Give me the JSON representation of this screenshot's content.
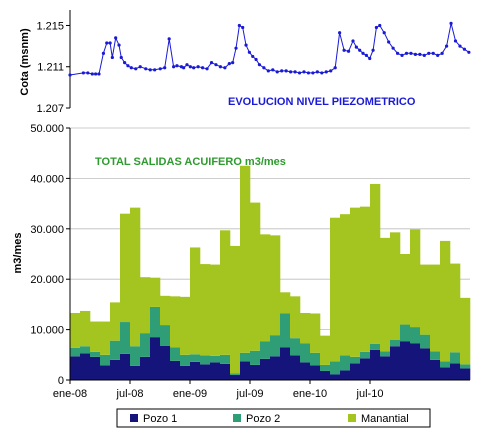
{
  "chart_data": [
    {
      "type": "line",
      "ylabel": "Cota (msnm)",
      "annotation": "EVOLUCION NIVEL PIEZOMETRICO",
      "ytick_labels": [
        "1.215",
        "1.211",
        "1.207"
      ],
      "yticks": [
        1215,
        1211,
        1207
      ],
      "ylim": [
        1207,
        1216.5
      ],
      "xlim": [
        0,
        35.9
      ],
      "color": "#1a1ad6",
      "x": [
        0,
        1.2,
        1.6,
        2.0,
        2.3,
        2.6,
        3.0,
        3.3,
        3.6,
        3.8,
        4.1,
        4.4,
        4.6,
        4.9,
        5.2,
        5.5,
        5.9,
        6.3,
        6.8,
        7.2,
        7.6,
        8.1,
        8.5,
        8.9,
        9.3,
        9.6,
        10.0,
        10.2,
        10.5,
        10.8,
        11.1,
        11.5,
        11.9,
        12.3,
        12.7,
        13.1,
        13.5,
        13.9,
        14.3,
        14.6,
        14.9,
        15.2,
        15.5,
        15.8,
        16.1,
        16.4,
        16.7,
        17.0,
        17.4,
        17.8,
        18.2,
        18.6,
        19.0,
        19.4,
        19.8,
        20.2,
        20.6,
        21.0,
        21.4,
        21.8,
        22.2,
        22.6,
        23.0,
        23.4,
        23.8,
        24.2,
        24.6,
        25.0,
        25.4,
        25.7,
        26.0,
        26.3,
        26.6,
        26.9,
        27.2,
        27.5,
        27.8,
        28.2,
        28.6,
        29.0,
        29.4,
        29.8,
        30.2,
        30.6,
        31.0,
        31.4,
        31.8,
        32.2,
        32.6,
        33.0,
        33.4,
        33.8,
        34.2,
        34.6,
        35.0,
        35.4,
        35.8
      ],
      "y": [
        1210.2,
        1210.4,
        1210.4,
        1210.3,
        1210.3,
        1210.3,
        1212.3,
        1213.3,
        1213.3,
        1211.9,
        1213.8,
        1213.1,
        1211.9,
        1211.4,
        1211.1,
        1210.9,
        1210.8,
        1211.0,
        1210.8,
        1210.7,
        1210.7,
        1210.8,
        1210.9,
        1213.7,
        1211.0,
        1211.1,
        1211.0,
        1210.9,
        1211.2,
        1211.0,
        1210.9,
        1211.0,
        1210.9,
        1210.8,
        1211.4,
        1211.2,
        1211.0,
        1210.9,
        1211.3,
        1211.4,
        1212.8,
        1215.0,
        1214.8,
        1213.1,
        1212.4,
        1212.0,
        1211.7,
        1211.2,
        1210.9,
        1210.6,
        1210.7,
        1210.5,
        1210.6,
        1210.6,
        1210.5,
        1210.5,
        1210.4,
        1210.5,
        1210.4,
        1210.4,
        1210.5,
        1210.4,
        1210.5,
        1210.6,
        1210.9,
        1214.3,
        1212.6,
        1212.5,
        1213.5,
        1212.9,
        1212.6,
        1212.3,
        1212.1,
        1211.8,
        1212.6,
        1214.8,
        1215.0,
        1214.3,
        1213.4,
        1212.8,
        1212.3,
        1212.1,
        1212.3,
        1212.3,
        1212.2,
        1212.2,
        1212.1,
        1212.3,
        1212.3,
        1212.1,
        1212.3,
        1213.0,
        1215.2,
        1213.5,
        1213.0,
        1212.7,
        1212.4
      ]
    },
    {
      "type": "bar",
      "stacked": true,
      "ylabel": "m3/mes",
      "annotation": "TOTAL SALIDAS ACUIFERO m3/mes",
      "ytick_labels": [
        "0",
        "10.000",
        "20.000",
        "30.000",
        "40.000",
        "50.000"
      ],
      "yticks": [
        0,
        10000,
        20000,
        30000,
        40000,
        50000
      ],
      "ylim": [
        0,
        50000
      ],
      "x_tick_labels": [
        "ene-08",
        "jul-08",
        "ene-09",
        "jul-09",
        "ene-10",
        "jul-10"
      ],
      "x_tick_positions": [
        0,
        6,
        12,
        18,
        24,
        30
      ],
      "legend": "bottom",
      "series": [
        {
          "name": "Pozo 1",
          "color": "#14147a",
          "values": [
            4700,
            5300,
            4600,
            2900,
            4000,
            5200,
            2800,
            4600,
            8500,
            6800,
            3800,
            2800,
            3600,
            3100,
            3500,
            3200,
            1000,
            3700,
            3000,
            4200,
            4700,
            6500,
            4900,
            3500,
            2900,
            1800,
            1100,
            1900,
            3300,
            4300,
            6000,
            4700,
            6700,
            7700,
            7300,
            6300,
            4000,
            2500,
            3300,
            2300
          ]
        },
        {
          "name": "Pozo 2",
          "color": "#2f9e77",
          "values": [
            1700,
            1400,
            1000,
            2100,
            3800,
            6300,
            3900,
            4700,
            6000,
            4100,
            2700,
            2200,
            1500,
            1800,
            1300,
            1800,
            300,
            1700,
            2800,
            3500,
            4200,
            6700,
            3400,
            3800,
            2500,
            1200,
            2600,
            3000,
            1300,
            1300,
            1200,
            1000,
            1300,
            3300,
            3200,
            2700,
            1700,
            1200,
            2200,
            800
          ]
        },
        {
          "name": "Manantial",
          "color": "#a4c51f",
          "values": [
            6900,
            7000,
            6000,
            6600,
            7600,
            21500,
            27500,
            11100,
            5800,
            5800,
            10100,
            11500,
            21200,
            18100,
            18100,
            24700,
            25300,
            37100,
            29400,
            21200,
            19800,
            4200,
            8300,
            6000,
            7800,
            5800,
            28500,
            28000,
            29600,
            28800,
            31700,
            22500,
            21300,
            14000,
            19400,
            13900,
            17200,
            23900,
            17600,
            13200
          ]
        }
      ]
    }
  ]
}
